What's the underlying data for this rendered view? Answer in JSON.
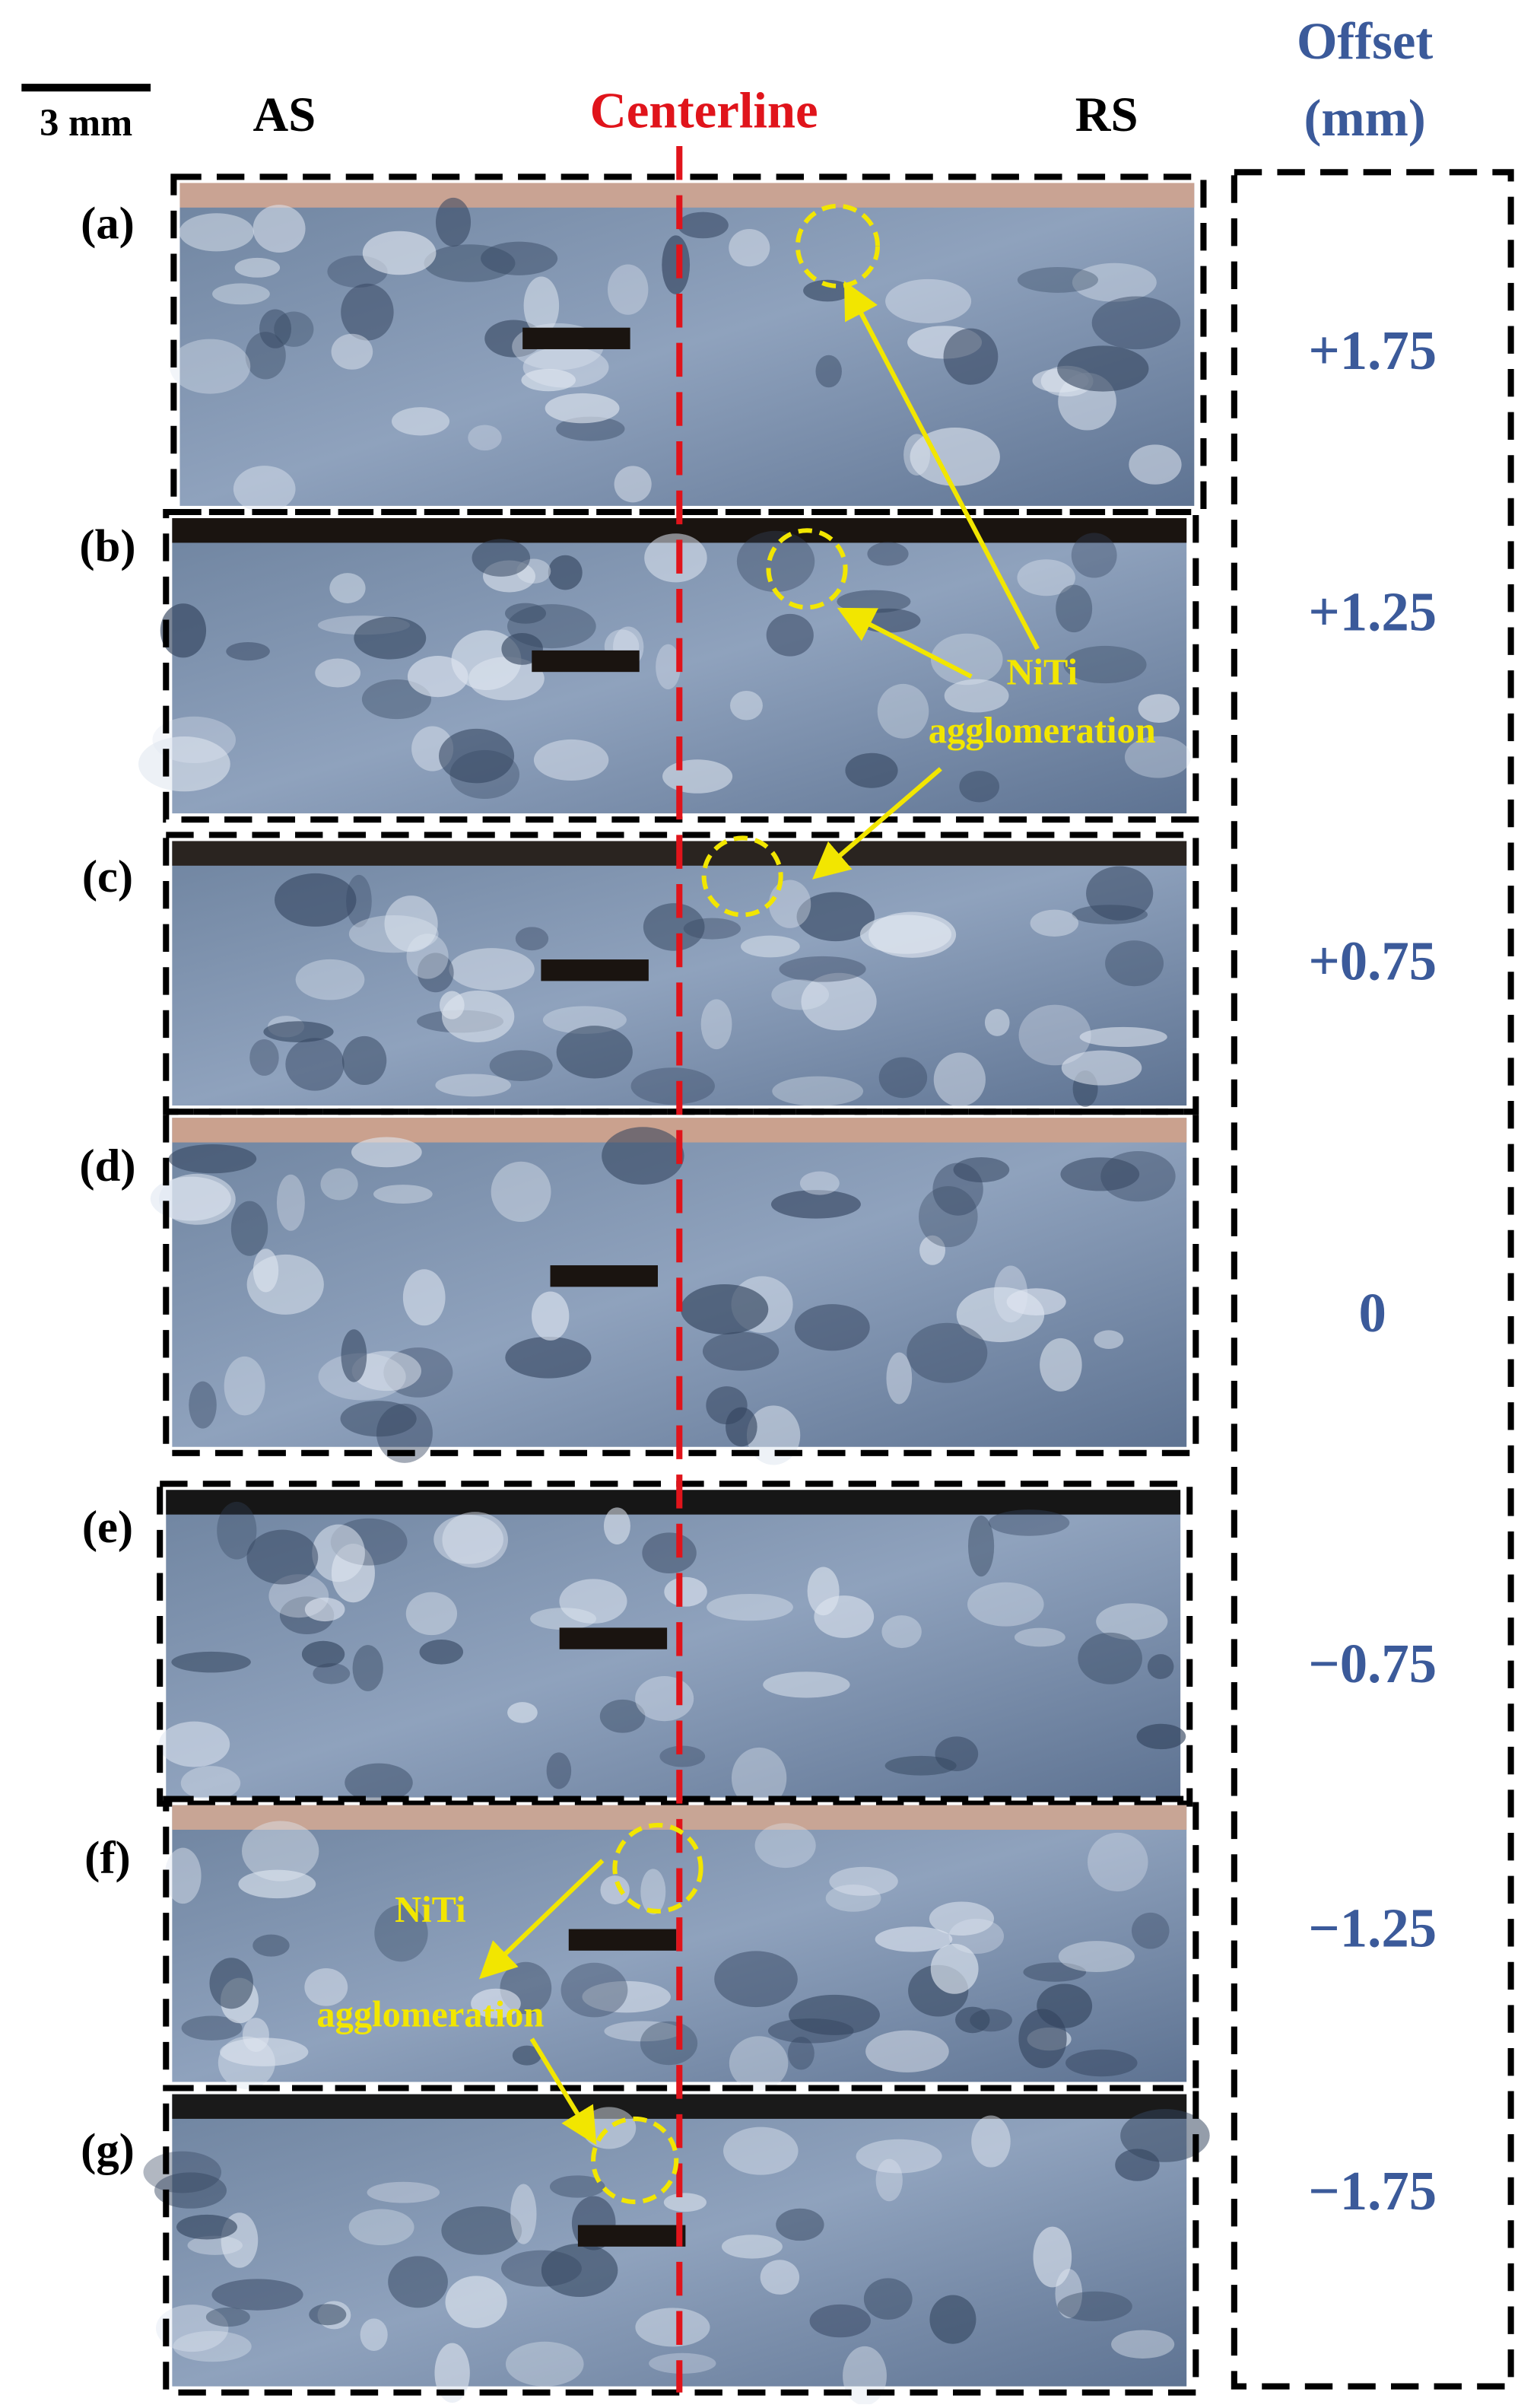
{
  "scale_bar": "3 mm",
  "headers": {
    "as": "AS",
    "centerline": "Centerline",
    "rs": "RS",
    "offset": [
      "Offset",
      "(mm)"
    ]
  },
  "panels": [
    {
      "label": "(a)",
      "offset": "+1.75"
    },
    {
      "label": "(b)",
      "offset": "+1.25"
    },
    {
      "label": "(c)",
      "offset": "+0.75"
    },
    {
      "label": "(d)",
      "offset": "0"
    },
    {
      "label": "(e)",
      "offset": "−0.75"
    },
    {
      "label": "(f)",
      "offset": "−1.25"
    },
    {
      "label": "(g)",
      "offset": "−1.75"
    }
  ],
  "annotations": [
    {
      "lines": [
        "NiTi",
        "agglomeration"
      ]
    },
    {
      "lines": [
        "NiTi",
        "agglomeration"
      ]
    }
  ]
}
